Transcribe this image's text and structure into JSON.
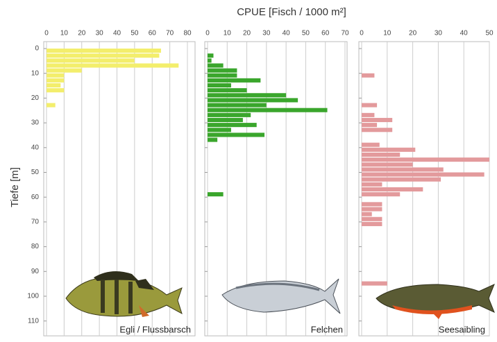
{
  "chart_data": {
    "type": "bar",
    "title": "CPUE [Fisch / 1000 m²]",
    "ylabel": "Tiefe [m]",
    "ylim": [
      0,
      116
    ],
    "yticks": [
      0,
      10,
      20,
      30,
      40,
      50,
      60,
      70,
      80,
      90,
      100,
      110
    ],
    "grid": true,
    "panels": [
      {
        "name": "Egli / Flussbarsch",
        "color": "#f3ee6c",
        "xlim": [
          0,
          80
        ],
        "xticks": [
          0,
          10,
          20,
          30,
          40,
          50,
          60,
          70,
          80
        ],
        "depth": [
          0,
          2,
          4,
          6,
          8,
          10,
          12,
          14,
          16,
          22
        ],
        "values": [
          65,
          64,
          50,
          75,
          20,
          10,
          10,
          8,
          10,
          5
        ]
      },
      {
        "name": "Felchen",
        "color": "#3aa62c",
        "xlim": [
          0,
          70
        ],
        "xticks": [
          0,
          10,
          20,
          30,
          40,
          50,
          60,
          70
        ],
        "depth": [
          2,
          4,
          6,
          8,
          10,
          12,
          14,
          16,
          18,
          20,
          22,
          24,
          26,
          28,
          30,
          32,
          34,
          36,
          58
        ],
        "values": [
          3,
          2,
          8,
          15,
          15,
          27,
          12,
          20,
          40,
          46,
          30,
          61,
          22,
          18,
          25,
          12,
          29,
          5,
          8
        ]
      },
      {
        "name": "Seesaibling",
        "color": "#e39a9c",
        "xlim": [
          0,
          50
        ],
        "xticks": [
          0,
          10,
          20,
          30,
          40,
          50
        ],
        "depth": [
          10,
          22,
          26,
          28,
          30,
          32,
          38,
          40,
          42,
          44,
          46,
          48,
          50,
          52,
          54,
          56,
          58,
          62,
          64,
          66,
          68,
          70,
          94
        ],
        "values": [
          5,
          6,
          5,
          12,
          6,
          12,
          7,
          21,
          15,
          50,
          20,
          32,
          48,
          31,
          8,
          24,
          15,
          8,
          8,
          4,
          8,
          8,
          10
        ]
      }
    ]
  }
}
